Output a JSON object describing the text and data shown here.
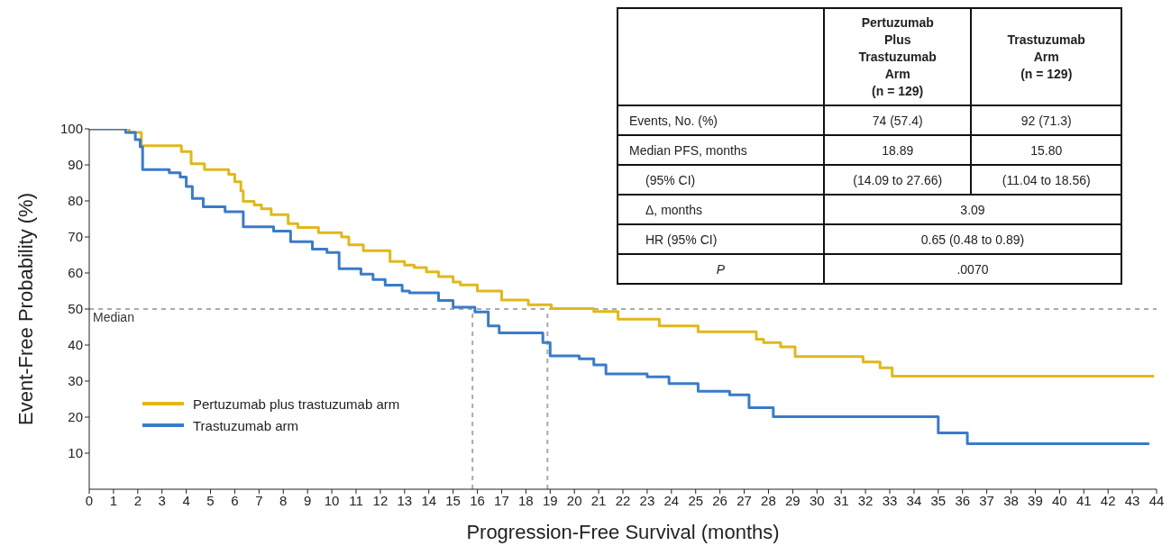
{
  "chart_data": {
    "type": "step",
    "xlabel": "Progression-Free Survival (months)",
    "ylabel": "Event-Free Probability (%)",
    "xlim": [
      0,
      44
    ],
    "xticks": [
      0,
      1,
      2,
      3,
      4,
      5,
      6,
      7,
      8,
      9,
      10,
      11,
      12,
      13,
      14,
      15,
      16,
      17,
      18,
      19,
      20,
      21,
      22,
      23,
      24,
      25,
      26,
      27,
      28,
      29,
      30,
      31,
      32,
      33,
      34,
      35,
      36,
      37,
      38,
      39,
      40,
      41,
      42,
      43,
      44
    ],
    "ylim": [
      0,
      100
    ],
    "yticks": [
      10,
      20,
      30,
      40,
      50,
      60,
      70,
      80,
      90,
      100
    ],
    "legend": "left",
    "series": [
      {
        "name": "Pertuzumab plus trastuzumab arm",
        "color": "#e0b81c",
        "x": [
          0,
          1.65,
          2.15,
          3.8,
          4.2,
          4.75,
          5.75,
          6.0,
          6.25,
          6.35,
          6.8,
          7.1,
          7.5,
          8.2,
          8.6,
          9.45,
          10.4,
          10.7,
          11.3,
          12.4,
          13.0,
          13.4,
          13.9,
          14.4,
          15.0,
          15.3,
          16.0,
          17.0,
          18.1,
          19.05,
          20.8,
          21.8,
          23.5,
          25.1,
          27.5,
          27.8,
          28.5,
          29.1,
          31.9,
          32.6,
          33.1,
          43.9
        ],
        "values": [
          100,
          99,
          95.3,
          93.7,
          90.3,
          88.7,
          87.4,
          85.3,
          82.8,
          79.9,
          78.9,
          77.8,
          76.2,
          73.7,
          72.6,
          71.2,
          70,
          67.8,
          66.2,
          63.2,
          62.2,
          61.5,
          60.3,
          59,
          57.5,
          56.7,
          55,
          52.5,
          51.2,
          50.1,
          49.3,
          47.2,
          45.3,
          43.7,
          41.6,
          40.7,
          39.5,
          36.8,
          35.3,
          33.7,
          31.4,
          31.4
        ]
      },
      {
        "name": "Trastuzumab arm",
        "color": "#3a7bc8",
        "x": [
          0,
          1.5,
          1.9,
          2.1,
          2.2,
          3.3,
          3.75,
          4.0,
          4.25,
          4.7,
          5.6,
          6.35,
          7.6,
          8.3,
          9.2,
          9.8,
          10.3,
          11.2,
          11.7,
          12.2,
          12.9,
          13.2,
          14.4,
          15.0,
          15.9,
          16.45,
          16.9,
          18.7,
          19.0,
          20.2,
          20.8,
          21.3,
          23.0,
          23.9,
          25.1,
          26.4,
          27.2,
          28.2,
          35.0,
          36.2,
          43.7
        ],
        "values": [
          100,
          99,
          97,
          95,
          88.7,
          87.8,
          86.6,
          84,
          80.7,
          78.4,
          77,
          72.8,
          71.6,
          68.7,
          66.6,
          65.7,
          61.2,
          59.7,
          58.2,
          56.6,
          55,
          54.5,
          52.4,
          50.5,
          49.2,
          45.3,
          43.4,
          40.7,
          37,
          36.2,
          34.5,
          32,
          31.2,
          29.3,
          27.2,
          26.2,
          22.6,
          20.1,
          15.6,
          12.6,
          12.6
        ]
      }
    ],
    "ref_lines": [
      {
        "axis": "y",
        "value": 50,
        "label": "Median",
        "color": "#aaaaaa",
        "line_style": "dashed"
      },
      {
        "axis": "x",
        "value": 15.8,
        "color": "#aaaaaa",
        "line_style": "dashed"
      },
      {
        "axis": "x",
        "value": 18.89,
        "color": "#aaaaaa",
        "line_style": "dashed"
      }
    ],
    "annotations": [
      "Pertuzumab\nPlus\nTrastuzumab\nArm\n(n = 129)",
      "Trastuzumab\nArm\n(n = 129)",
      "Events, No. (%)",
      "74 (57.4)",
      "92 (71.3)",
      "Median PFS, months",
      "18.89",
      "15.80",
      "(95% CI)",
      "(14.09 to 27.66)",
      "(11.04 to 18.56)",
      "Δ, months",
      "3.09",
      "HR (95% CI)",
      "0.65 (0.48 to 0.89)",
      "P",
      ".0070"
    ]
  }
}
